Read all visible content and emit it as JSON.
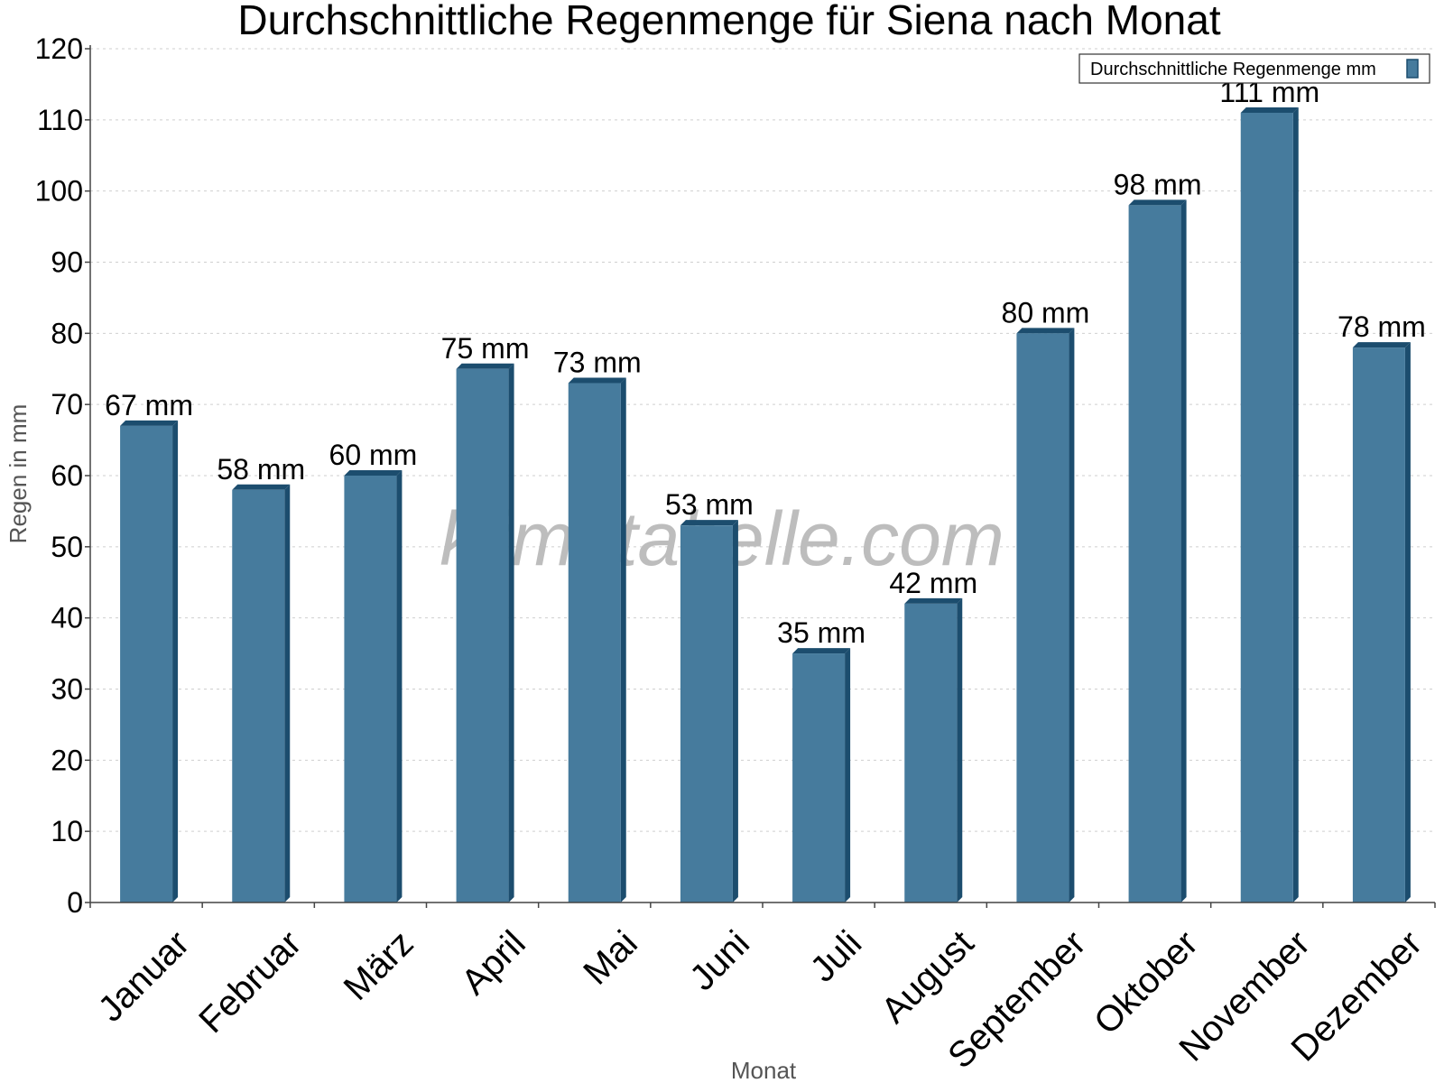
{
  "chart_data": {
    "type": "bar",
    "title": "Durchschnittliche Regenmenge für Siena nach Monat",
    "xlabel": "Monat",
    "ylabel": "Regen in mm",
    "ylim": [
      0,
      120
    ],
    "yticks": [
      0,
      10,
      20,
      30,
      40,
      50,
      60,
      70,
      80,
      90,
      100,
      110,
      120
    ],
    "grid": true,
    "legend_position": "top-right",
    "categories": [
      "Januar",
      "Februar",
      "März",
      "April",
      "Mai",
      "Juni",
      "Juli",
      "August",
      "September",
      "Oktober",
      "November",
      "Dezember"
    ],
    "series": [
      {
        "name": "Durchschnittliche Regenmenge mm",
        "color": "#467b9d",
        "values": [
          67,
          58,
          60,
          75,
          73,
          53,
          35,
          42,
          80,
          98,
          111,
          78
        ],
        "labels": [
          "67 mm",
          "58 mm",
          "60 mm",
          "75 mm",
          "73 mm",
          "53 mm",
          "35 mm",
          "42 mm",
          "80 mm",
          "98 mm",
          "111 mm",
          "78 mm"
        ]
      }
    ],
    "watermark": "klimatabelle.com"
  }
}
